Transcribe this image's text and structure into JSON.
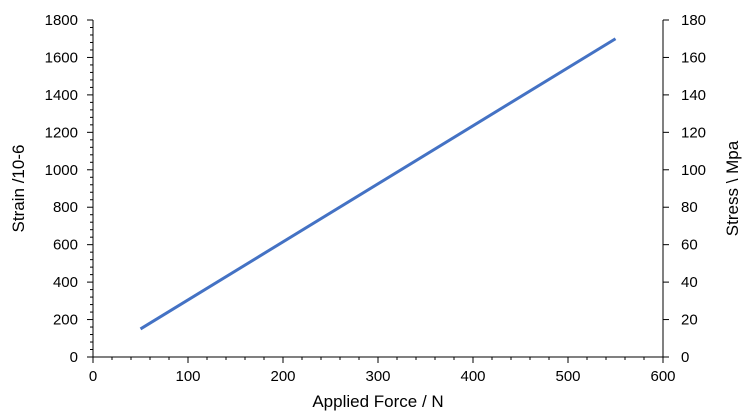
{
  "chart_data": {
    "type": "line",
    "xlabel": "Applied Force / N",
    "ylabel": "Strain /10-6",
    "y2label": "Stress \\ Mpa",
    "xlim": [
      0,
      600
    ],
    "ylim": [
      0,
      1800
    ],
    "y2lim": [
      0,
      180
    ],
    "x_ticks": [
      0,
      100,
      200,
      300,
      400,
      500,
      600
    ],
    "y_ticks": [
      0,
      200,
      400,
      600,
      800,
      1000,
      1200,
      1400,
      1600,
      1800
    ],
    "y2_ticks": [
      0,
      20,
      40,
      60,
      80,
      100,
      120,
      140,
      160,
      180
    ],
    "grid": false,
    "legend": "none",
    "series": [
      {
        "color": "#4472C4",
        "x": [
          50,
          550
        ],
        "y": [
          150,
          1700
        ]
      }
    ]
  }
}
